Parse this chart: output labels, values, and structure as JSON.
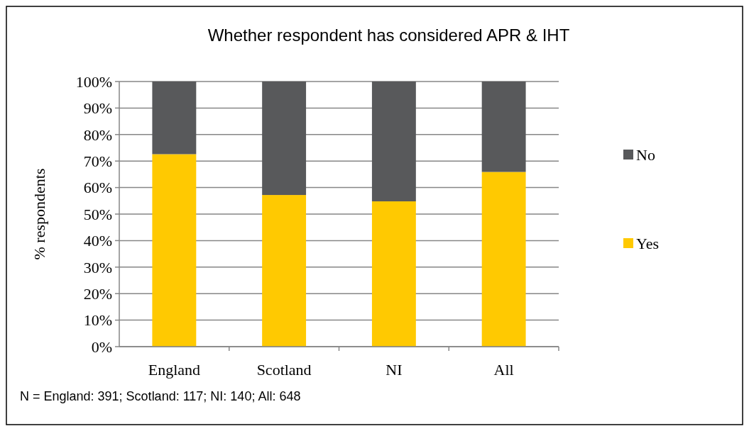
{
  "chart_data": {
    "type": "bar",
    "title": "Whether respondent has considered APR & IHT",
    "ylabel": "% respondents",
    "categories": [
      "England",
      "Scotland",
      "NI",
      "All"
    ],
    "stacked": true,
    "series": [
      {
        "name": "Yes",
        "color": "#ffc901",
        "values": [
          72.6,
          57.2,
          54.8,
          65.9
        ]
      },
      {
        "name": "No",
        "color": "#58595b",
        "values": [
          27.4,
          42.8,
          45.2,
          34.1
        ]
      }
    ],
    "ylim": [
      0,
      100
    ],
    "yticks": [
      {
        "value": 0,
        "label": "0%"
      },
      {
        "value": 10,
        "label": "10%"
      },
      {
        "value": 20,
        "label": "20%"
      },
      {
        "value": 30,
        "label": "30%"
      },
      {
        "value": 40,
        "label": "40%"
      },
      {
        "value": 50,
        "label": "50%"
      },
      {
        "value": 60,
        "label": "60%"
      },
      {
        "value": 70,
        "label": "70%"
      },
      {
        "value": 80,
        "label": "80%"
      },
      {
        "value": 90,
        "label": "90%"
      },
      {
        "value": 100,
        "label": "100%"
      }
    ],
    "grid": "y",
    "legend": "right",
    "annotations": [
      "N = England: 391; Scotland: 117; NI: 140; All: 648"
    ]
  }
}
